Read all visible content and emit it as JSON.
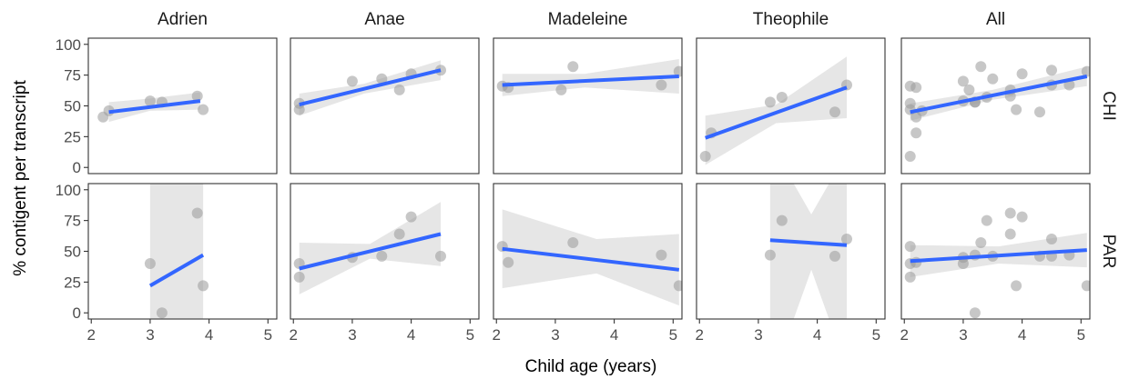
{
  "chart_data": {
    "type": "scatter",
    "xlabel": "Child age (years)",
    "ylabel": "% contigent per transcript",
    "xlim": [
      1.95,
      5.15
    ],
    "ylim": [
      -5,
      105
    ],
    "xticks": [
      "2",
      "3",
      "4",
      "5"
    ],
    "xtick_values": [
      2,
      3,
      4,
      5
    ],
    "yticks": [
      "0",
      "25",
      "50",
      "75",
      "100"
    ],
    "ytick_values": [
      0,
      25,
      50,
      75,
      100
    ],
    "columns": [
      "Adrien",
      "Anae",
      "Madeleine",
      "Theophile",
      "All"
    ],
    "rows": [
      "CHI",
      "PAR"
    ],
    "colors": {
      "line": "#3366FF",
      "point": "#999999",
      "band": "#e6e6e6"
    },
    "panels": [
      {
        "column": "Adrien",
        "row": "CHI",
        "points": [
          [
            2.2,
            41
          ],
          [
            2.3,
            46
          ],
          [
            3.0,
            54
          ],
          [
            3.2,
            53
          ],
          [
            3.8,
            58
          ],
          [
            3.9,
            47
          ]
        ],
        "fit": [
          [
            2.3,
            45
          ],
          [
            3.85,
            54
          ]
        ],
        "band_upper": [
          [
            2.3,
            53
          ],
          [
            3.0,
            56
          ],
          [
            3.85,
            61
          ]
        ],
        "band_lower": [
          [
            2.3,
            37
          ],
          [
            3.0,
            46
          ],
          [
            3.85,
            47
          ]
        ]
      },
      {
        "column": "Anae",
        "row": "CHI",
        "points": [
          [
            2.1,
            52
          ],
          [
            2.1,
            47
          ],
          [
            3.0,
            70
          ],
          [
            3.5,
            72
          ],
          [
            3.8,
            63
          ],
          [
            4.0,
            76
          ],
          [
            4.5,
            79
          ]
        ],
        "fit": [
          [
            2.1,
            51
          ],
          [
            4.5,
            79
          ]
        ],
        "band_upper": [
          [
            2.1,
            60
          ],
          [
            3.2,
            68
          ],
          [
            4.5,
            87
          ]
        ],
        "band_lower": [
          [
            2.1,
            42
          ],
          [
            3.2,
            60
          ],
          [
            4.5,
            71
          ]
        ]
      },
      {
        "column": "Madeleine",
        "row": "CHI",
        "points": [
          [
            2.1,
            66
          ],
          [
            2.2,
            65
          ],
          [
            3.1,
            63
          ],
          [
            3.3,
            82
          ],
          [
            4.8,
            67
          ],
          [
            5.1,
            78
          ]
        ],
        "fit": [
          [
            2.1,
            67
          ],
          [
            5.1,
            74
          ]
        ],
        "band_upper": [
          [
            2.1,
            76
          ],
          [
            3.5,
            76
          ],
          [
            5.1,
            88
          ]
        ],
        "band_lower": [
          [
            2.1,
            58
          ],
          [
            3.5,
            65
          ],
          [
            5.1,
            60
          ]
        ]
      },
      {
        "column": "Theophile",
        "row": "CHI",
        "points": [
          [
            2.1,
            9
          ],
          [
            2.2,
            28
          ],
          [
            3.2,
            53
          ],
          [
            3.4,
            57
          ],
          [
            4.3,
            45
          ],
          [
            4.5,
            67
          ]
        ],
        "fit": [
          [
            2.1,
            24
          ],
          [
            4.5,
            65
          ]
        ],
        "band_upper": [
          [
            2.1,
            42
          ],
          [
            3.3,
            51
          ],
          [
            4.5,
            90
          ]
        ],
        "band_lower": [
          [
            2.1,
            2
          ],
          [
            3.3,
            36
          ],
          [
            4.5,
            40
          ]
        ]
      },
      {
        "column": "All",
        "row": "CHI",
        "points": [
          [
            2.1,
            66
          ],
          [
            2.1,
            52
          ],
          [
            2.1,
            47
          ],
          [
            2.1,
            9
          ],
          [
            2.2,
            65
          ],
          [
            2.2,
            41
          ],
          [
            2.2,
            28
          ],
          [
            2.3,
            46
          ],
          [
            3.0,
            54
          ],
          [
            3.0,
            70
          ],
          [
            3.1,
            63
          ],
          [
            3.2,
            53
          ],
          [
            3.2,
            53
          ],
          [
            3.3,
            82
          ],
          [
            3.4,
            57
          ],
          [
            3.5,
            72
          ],
          [
            3.8,
            58
          ],
          [
            3.8,
            63
          ],
          [
            3.9,
            47
          ],
          [
            4.0,
            76
          ],
          [
            4.3,
            45
          ],
          [
            4.5,
            79
          ],
          [
            4.5,
            67
          ],
          [
            4.8,
            67
          ],
          [
            5.1,
            78
          ]
        ],
        "fit": [
          [
            2.1,
            45
          ],
          [
            5.1,
            74
          ]
        ],
        "band_upper": [
          [
            2.1,
            52
          ],
          [
            3.5,
            63
          ],
          [
            5.1,
            82
          ]
        ],
        "band_lower": [
          [
            2.1,
            38
          ],
          [
            3.5,
            55
          ],
          [
            5.1,
            66
          ]
        ]
      },
      {
        "column": "Adrien",
        "row": "PAR",
        "points": [
          [
            3.0,
            40
          ],
          [
            3.2,
            0
          ],
          [
            3.8,
            81
          ],
          [
            3.9,
            22
          ]
        ],
        "fit": [
          [
            3.0,
            22
          ],
          [
            3.9,
            47
          ]
        ],
        "band_upper": [
          [
            3.0,
            105
          ],
          [
            3.9,
            105
          ]
        ],
        "band_lower": [
          [
            3.0,
            -5
          ],
          [
            3.9,
            -5
          ]
        ]
      },
      {
        "column": "Anae",
        "row": "PAR",
        "points": [
          [
            2.1,
            40
          ],
          [
            2.1,
            29
          ],
          [
            3.0,
            45
          ],
          [
            3.5,
            46
          ],
          [
            3.8,
            64
          ],
          [
            4.0,
            78
          ],
          [
            4.5,
            46
          ]
        ],
        "fit": [
          [
            2.1,
            36
          ],
          [
            4.5,
            64
          ]
        ],
        "band_upper": [
          [
            2.1,
            57
          ],
          [
            3.3,
            56
          ],
          [
            4.5,
            90
          ]
        ],
        "band_lower": [
          [
            2.1,
            15
          ],
          [
            3.3,
            44
          ],
          [
            4.5,
            38
          ]
        ]
      },
      {
        "column": "Madeleine",
        "row": "PAR",
        "points": [
          [
            2.1,
            54
          ],
          [
            2.2,
            41
          ],
          [
            3.3,
            57
          ],
          [
            4.8,
            47
          ],
          [
            5.1,
            22
          ]
        ],
        "fit": [
          [
            2.1,
            52
          ],
          [
            5.1,
            35
          ]
        ],
        "band_upper": [
          [
            2.1,
            84
          ],
          [
            3.7,
            60
          ],
          [
            5.1,
            64
          ]
        ],
        "band_lower": [
          [
            2.1,
            20
          ],
          [
            3.7,
            32
          ],
          [
            5.1,
            6
          ]
        ]
      },
      {
        "column": "Theophile",
        "row": "PAR",
        "points": [
          [
            3.2,
            47
          ],
          [
            3.4,
            75
          ],
          [
            4.3,
            46
          ],
          [
            4.5,
            60
          ]
        ],
        "fit": [
          [
            3.2,
            59
          ],
          [
            4.5,
            55
          ]
        ],
        "band_upper": [
          [
            3.2,
            105
          ],
          [
            3.6,
            105
          ],
          [
            3.9,
            80
          ],
          [
            4.2,
            105
          ],
          [
            4.5,
            105
          ]
        ],
        "band_lower": [
          [
            3.2,
            -5
          ],
          [
            3.6,
            -5
          ],
          [
            3.9,
            35
          ],
          [
            4.2,
            -5
          ],
          [
            4.5,
            -5
          ]
        ]
      },
      {
        "column": "All",
        "row": "PAR",
        "points": [
          [
            2.1,
            54
          ],
          [
            2.1,
            40
          ],
          [
            2.1,
            29
          ],
          [
            2.2,
            41
          ],
          [
            3.0,
            40
          ],
          [
            3.0,
            45
          ],
          [
            3.2,
            47
          ],
          [
            3.2,
            0
          ],
          [
            3.3,
            57
          ],
          [
            3.4,
            75
          ],
          [
            3.5,
            46
          ],
          [
            3.8,
            81
          ],
          [
            3.8,
            64
          ],
          [
            3.9,
            22
          ],
          [
            4.0,
            78
          ],
          [
            4.3,
            46
          ],
          [
            4.5,
            46
          ],
          [
            4.5,
            60
          ],
          [
            4.8,
            47
          ],
          [
            5.1,
            22
          ]
        ],
        "fit": [
          [
            2.1,
            42
          ],
          [
            5.1,
            51
          ]
        ],
        "band_upper": [
          [
            2.1,
            55
          ],
          [
            3.6,
            54
          ],
          [
            5.1,
            65
          ]
        ],
        "band_lower": [
          [
            2.1,
            29
          ],
          [
            3.6,
            40
          ],
          [
            5.1,
            37
          ]
        ]
      }
    ]
  }
}
